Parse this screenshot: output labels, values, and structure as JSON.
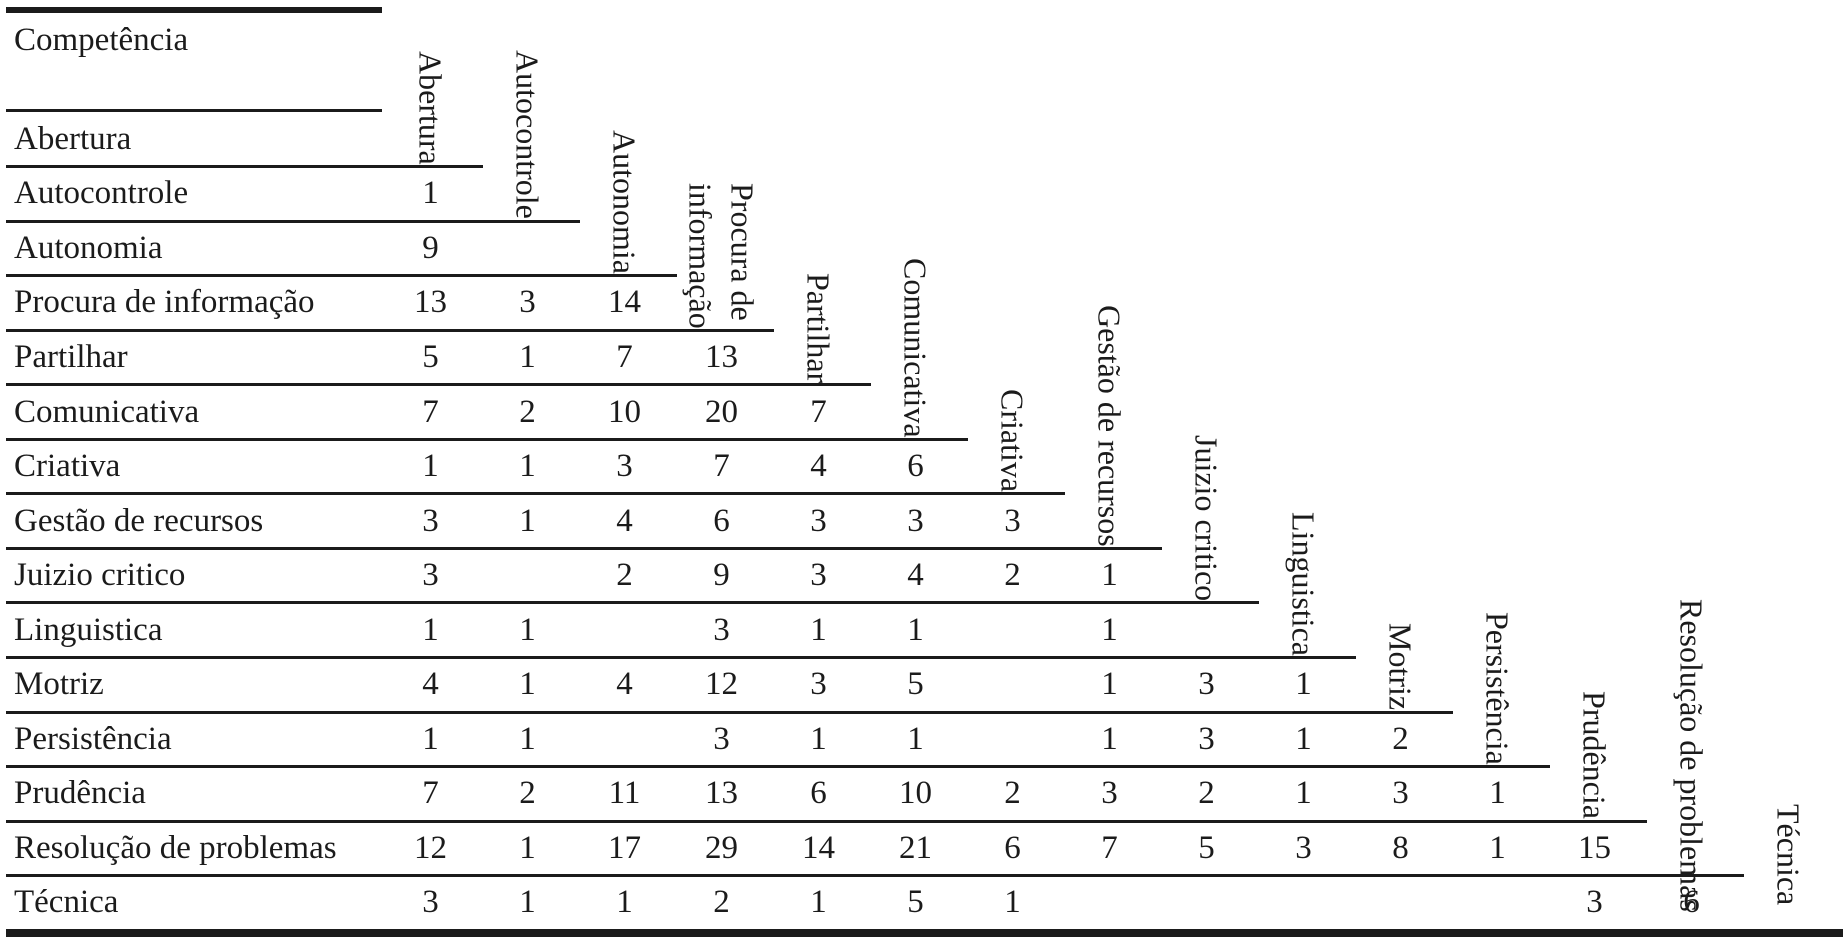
{
  "colors": {
    "text": "#1b1b1b",
    "background": "#ffffff"
  },
  "table": {
    "corner_label": "Competência",
    "columns": [
      "Abertura",
      "Autocontrole",
      "Autonomia",
      "Procura de\ninformação",
      "Partilhar",
      "Comunicativa",
      "Criativa",
      "Gestão de recursos",
      "Juizio critico",
      "Linguistica",
      "Motriz",
      "Persistência",
      "Prudência",
      "Resolução de problemas",
      "Técnica"
    ],
    "rows": [
      {
        "label": "Abertura",
        "values": []
      },
      {
        "label": "Autocontrole",
        "values": [
          1
        ]
      },
      {
        "label": "Autonomia",
        "values": [
          9
        ]
      },
      {
        "label": "Procura de informação",
        "values": [
          13,
          3,
          14
        ]
      },
      {
        "label": "Partilhar",
        "values": [
          5,
          1,
          7,
          13
        ]
      },
      {
        "label": "Comunicativa",
        "values": [
          7,
          2,
          10,
          20,
          7
        ]
      },
      {
        "label": "Criativa",
        "values": [
          1,
          1,
          3,
          7,
          4,
          6
        ]
      },
      {
        "label": "Gestão de recursos",
        "values": [
          3,
          1,
          4,
          6,
          3,
          3,
          3
        ]
      },
      {
        "label": "Juizio critico",
        "values": [
          3,
          null,
          2,
          9,
          3,
          4,
          2,
          1
        ]
      },
      {
        "label": "Linguistica",
        "values": [
          1,
          1,
          null,
          3,
          1,
          1,
          null,
          1,
          null
        ]
      },
      {
        "label": "Motriz",
        "values": [
          4,
          1,
          4,
          12,
          3,
          5,
          null,
          1,
          3,
          1
        ]
      },
      {
        "label": "Persistência",
        "values": [
          1,
          1,
          null,
          3,
          1,
          1,
          null,
          1,
          3,
          1,
          2
        ]
      },
      {
        "label": "Prudência",
        "values": [
          7,
          2,
          11,
          13,
          6,
          10,
          2,
          3,
          2,
          1,
          3,
          1
        ]
      },
      {
        "label": "Resolução de problemas",
        "values": [
          12,
          1,
          17,
          29,
          14,
          21,
          6,
          7,
          5,
          3,
          8,
          1,
          15
        ]
      },
      {
        "label": "Técnica",
        "values": [
          3,
          1,
          1,
          2,
          1,
          5,
          1,
          null,
          null,
          null,
          null,
          null,
          3,
          6
        ]
      }
    ]
  }
}
